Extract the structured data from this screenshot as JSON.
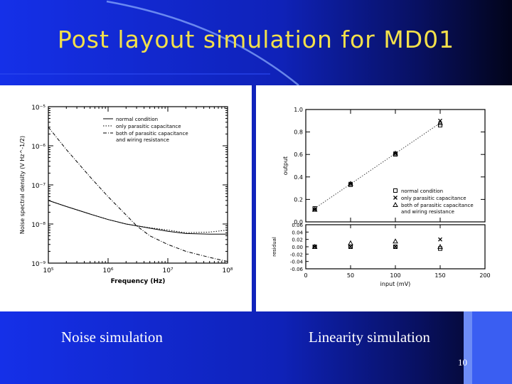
{
  "slide": {
    "title": "Post layout simulation for MD01",
    "left_caption": "Noise simulation",
    "right_caption": "Linearity simulation",
    "page_number": "10"
  },
  "chart_data": [
    {
      "type": "line",
      "xlabel": "Frequency (Hz)",
      "ylabel": "Noise spectral density (V Hz^-1/2)",
      "x_scale": "log",
      "y_scale": "log",
      "xlim": [
        100000,
        100000000
      ],
      "ylim": [
        1e-09,
        1e-05
      ],
      "x_tick_labels": [
        "10⁵",
        "10⁶",
        "10⁷",
        "10⁸"
      ],
      "y_tick_labels": [
        "10⁻⁹",
        "10⁻⁸",
        "10⁻⁷",
        "10⁻⁶",
        "10⁻⁵"
      ],
      "legend_position": "top-right",
      "series": [
        {
          "name": "normal condition",
          "style": "solid",
          "x": [
            100000,
            200000,
            500000,
            1000000,
            2000000,
            3000000,
            5000000,
            10000000,
            20000000,
            50000000,
            100000000
          ],
          "y": [
            4e-08,
            2.8e-08,
            1.8e-08,
            1.3e-08,
            1e-08,
            9e-09,
            7.8e-09,
            6.5e-09,
            5.7e-09,
            5.5e-09,
            5.5e-09
          ]
        },
        {
          "name": "only parasitic capacitance",
          "style": "dotted",
          "x": [
            100000,
            200000,
            500000,
            1000000,
            2000000,
            3000000,
            5000000,
            10000000,
            20000000,
            50000000,
            100000000
          ],
          "y": [
            4e-08,
            2.8e-08,
            1.8e-08,
            1.3e-08,
            1e-08,
            9e-09,
            8e-09,
            7e-09,
            6e-09,
            6.2e-09,
            7e-09
          ]
        },
        {
          "name": "both of parasitic capacitance and wiring resistance",
          "style": "dash-dot",
          "x": [
            100000,
            200000,
            500000,
            1000000,
            2000000,
            3000000,
            5000000,
            10000000,
            20000000,
            50000000,
            100000000
          ],
          "y": [
            3e-06,
            8e-07,
            1.6e-07,
            5e-08,
            1.7e-08,
            9e-09,
            5e-09,
            3e-09,
            2e-09,
            1.4e-09,
            1.1e-09
          ]
        }
      ]
    },
    {
      "type": "scatter",
      "xlabel": "input (mV)",
      "ylabel": "output",
      "ylabel_residual": "residual",
      "xlim": [
        0,
        200
      ],
      "ylim": [
        0,
        1.0
      ],
      "residual_ylim": [
        -0.06,
        0.06
      ],
      "x_ticks": [
        "0",
        "50",
        "100",
        "150",
        "200"
      ],
      "y_ticks": [
        "0.0",
        "0.2",
        "0.4",
        "0.6",
        "0.8",
        "1.0"
      ],
      "residual_ticks": [
        "0.06",
        "0.04",
        "0.02",
        "0.00",
        "-0.02",
        "-0.04",
        "-0.06"
      ],
      "legend_position": "bottom-right",
      "fit_line": {
        "x": [
          10,
          150
        ],
        "y": [
          0.12,
          0.88
        ]
      },
      "series": [
        {
          "name": "normal condition",
          "marker": "square",
          "x": [
            10,
            50,
            100,
            150
          ],
          "y": [
            0.12,
            0.33,
            0.6,
            0.86
          ],
          "residual": [
            0.0,
            0.0,
            0.0,
            -0.005
          ]
        },
        {
          "name": "only parasitic capacitance",
          "marker": "x",
          "x": [
            10,
            50,
            100,
            150
          ],
          "y": [
            0.11,
            0.34,
            0.61,
            0.9
          ],
          "residual": [
            0.0,
            0.0,
            0.0,
            0.02
          ]
        },
        {
          "name": "both of parasitic capacitance and wiring resistance",
          "marker": "triangle",
          "x": [
            10,
            50,
            100,
            150
          ],
          "y": [
            0.11,
            0.34,
            0.61,
            0.88
          ],
          "residual": [
            0.0,
            0.01,
            0.015,
            0.0
          ]
        }
      ]
    }
  ]
}
